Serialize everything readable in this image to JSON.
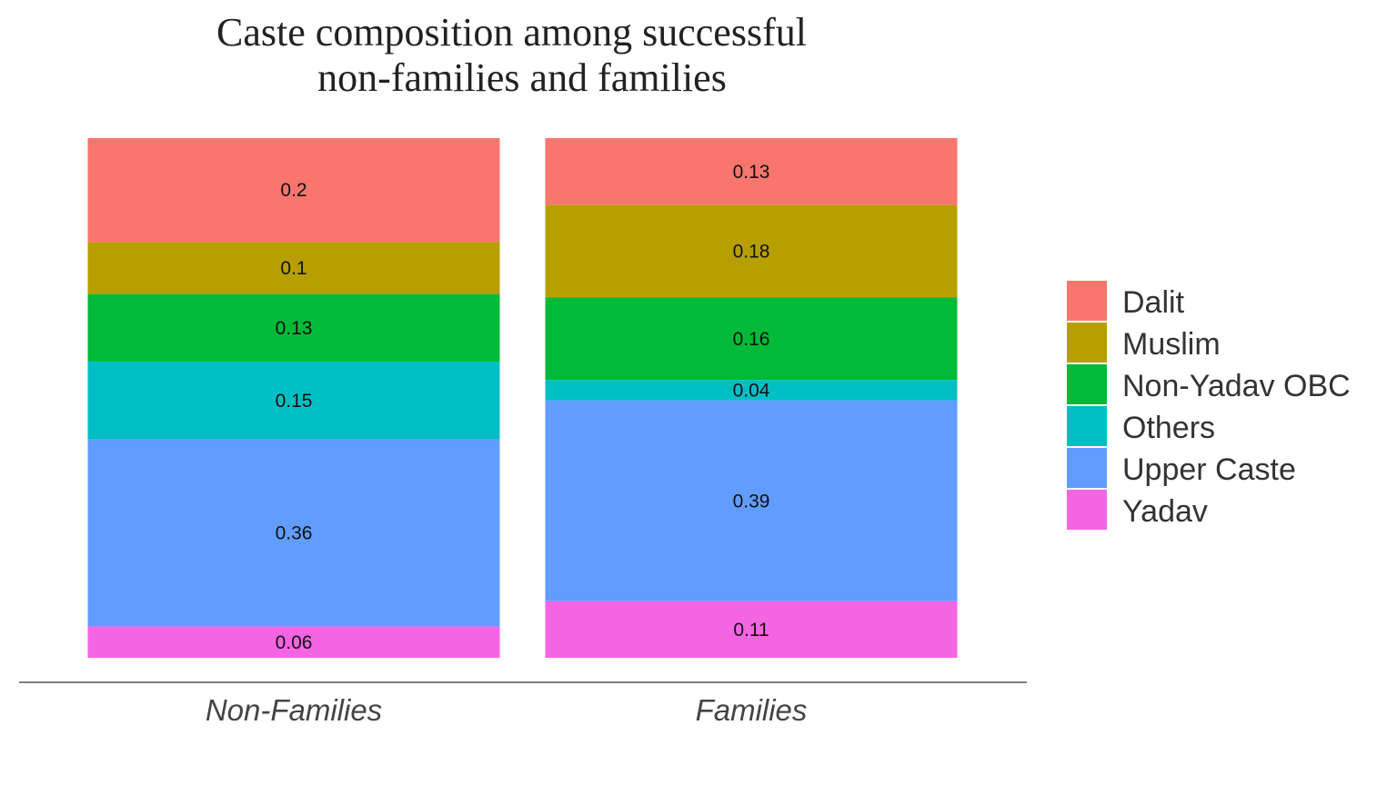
{
  "chart_data": {
    "type": "bar",
    "stacked": true,
    "title": "Caste composition among successful non-families and families",
    "title_lines": [
      "Caste composition among successful",
      "non-families and families"
    ],
    "xlabel": "",
    "ylabel": "",
    "ylim": [
      0,
      1
    ],
    "grid": false,
    "legend_position": "right",
    "categories": [
      "Non-Families",
      "Families"
    ],
    "series": [
      {
        "name": "Dalit",
        "color": "#F8766D",
        "values": [
          0.2,
          0.13
        ],
        "labels": [
          "0.2",
          "0.13"
        ]
      },
      {
        "name": "Muslim",
        "color": "#B79F00",
        "values": [
          0.1,
          0.18
        ],
        "labels": [
          "0.1",
          "0.18"
        ]
      },
      {
        "name": "Non-Yadav OBC",
        "color": "#00BA38",
        "values": [
          0.13,
          0.16
        ],
        "labels": [
          "0.13",
          "0.16"
        ]
      },
      {
        "name": "Others",
        "color": "#00BFC4",
        "values": [
          0.15,
          0.04
        ],
        "labels": [
          "0.15",
          "0.04"
        ]
      },
      {
        "name": "Upper Caste",
        "color": "#619CFF",
        "values": [
          0.36,
          0.39
        ],
        "labels": [
          "0.36",
          "0.39"
        ]
      },
      {
        "name": "Yadav",
        "color": "#F564E3",
        "values": [
          0.06,
          0.11
        ],
        "labels": [
          "0.06",
          "0.11"
        ]
      }
    ]
  }
}
